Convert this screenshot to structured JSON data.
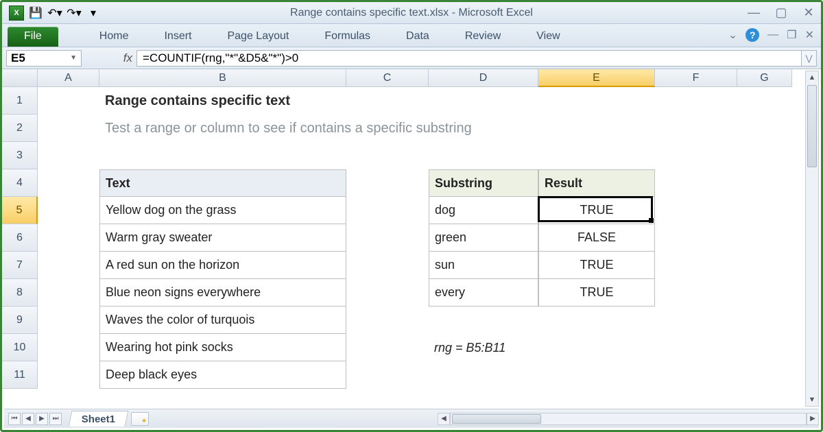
{
  "window": {
    "title": "Range contains specific text.xlsx  -  Microsoft Excel"
  },
  "qat": {
    "save_icon": "💾",
    "undo_icon": "↶",
    "redo_icon": "↷"
  },
  "ribbon": {
    "file": "File",
    "tabs": [
      "Home",
      "Insert",
      "Page Layout",
      "Formulas",
      "Data",
      "Review",
      "View"
    ]
  },
  "namebox": {
    "value": "E5"
  },
  "formula": {
    "fx": "fx",
    "value": "=COUNTIF(rng,\"*\"&D5&\"*\")>0"
  },
  "columns": [
    "A",
    "B",
    "C",
    "D",
    "E",
    "F",
    "G"
  ],
  "rows": [
    "1",
    "2",
    "3",
    "4",
    "5",
    "6",
    "7",
    "8",
    "9",
    "10",
    "11"
  ],
  "selected": {
    "col": "E",
    "row": "5"
  },
  "sheet": {
    "title": "Range contains specific text",
    "subtitle": "Test a range or column to see if contains a specific substring",
    "text_header": "Text",
    "text_items": [
      "Yellow dog on the grass",
      "Warm gray sweater",
      "A red sun on the horizon",
      "Blue neon signs everywhere",
      "Waves the color of turquois",
      "Wearing hot pink socks",
      "Deep black eyes"
    ],
    "sub_header": "Substring",
    "res_header": "Result",
    "lookup": [
      {
        "sub": "dog",
        "res": "TRUE"
      },
      {
        "sub": "green",
        "res": "FALSE"
      },
      {
        "sub": "sun",
        "res": "TRUE"
      },
      {
        "sub": "every",
        "res": "TRUE"
      }
    ],
    "note": "rng = B5:B11"
  },
  "tabs": {
    "sheet1": "Sheet1"
  },
  "colors": {
    "accent_green": "#1f6e1f",
    "header_blue": "#e8eef4",
    "header_green": "#edf1e4",
    "selection": "#f8cf66"
  }
}
